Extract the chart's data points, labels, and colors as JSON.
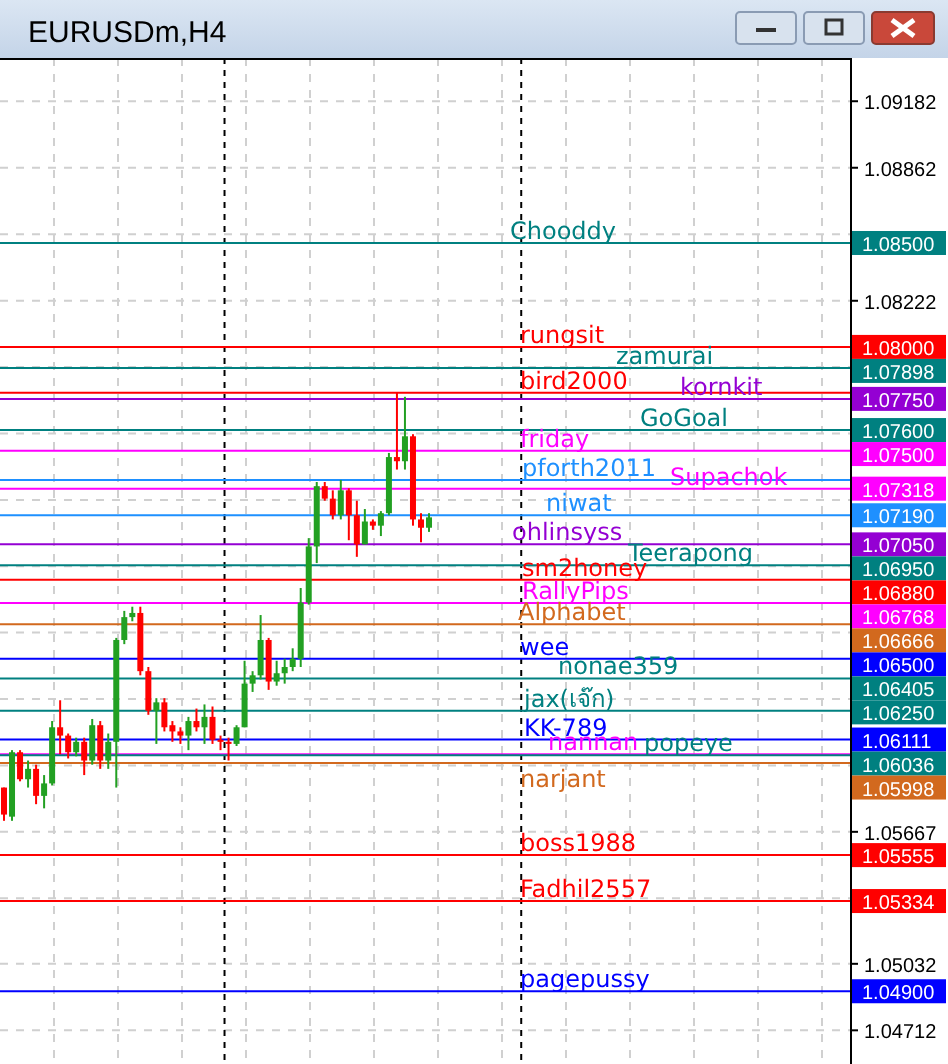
{
  "chart_data": {
    "type": "candlestick",
    "title": "EURUSDm,H4",
    "categories": [
      null,
      null,
      null,
      null,
      null,
      null,
      null,
      null,
      null,
      null,
      null,
      null,
      null,
      null,
      null,
      null,
      null,
      null,
      null,
      null,
      null,
      null,
      null,
      null,
      null,
      null,
      null,
      null,
      null,
      null,
      null,
      null,
      null,
      null,
      null,
      null,
      null,
      null,
      null,
      null,
      null,
      null,
      null,
      null,
      null,
      null,
      null,
      null,
      null,
      null,
      null,
      null,
      null,
      null,
      null,
      null,
      null,
      null,
      null,
      null,
      null,
      null,
      null,
      null,
      null,
      null,
      null,
      null,
      null,
      null,
      null,
      null,
      null,
      null,
      null,
      null,
      null,
      null,
      null,
      null,
      null,
      null,
      null,
      null,
      null,
      null,
      null,
      null,
      null,
      null,
      null,
      null,
      null,
      null,
      null,
      null,
      null,
      null,
      null,
      null,
      null,
      null,
      null,
      null,
      null,
      null
    ],
    "annotations": [
      "1.08500",
      "1.08000",
      "1.07898",
      "1.07750",
      "1.07600",
      "1.07500",
      "1.07318",
      "1.07190",
      "1.07050",
      "1.06880",
      "1.06950",
      "1.06768",
      "1.06666",
      "1.06500",
      "1.06405",
      "1.06250",
      "1.06111",
      "1.06036",
      "1.05998",
      "1.05555",
      "1.05334",
      "1.04900"
    ],
    "ylim": [
      1.0455,
      1.0939
    ],
    "yticks": [
      1.09182,
      1.08862,
      {
        "value": 1.08542,
        "label": null
      },
      1.08222,
      {
        "value": 1.07903,
        "label": null
      },
      {
        "value": 1.07584,
        "label": null
      },
      {
        "value": 1.07264,
        "label": null
      },
      {
        "value": 1.06945,
        "label": null
      },
      {
        "value": 1.06626,
        "label": null
      },
      {
        "value": 1.06306,
        "label": null
      },
      {
        "value": 1.05986,
        "label": null
      },
      1.05667,
      {
        "value": 1.05347,
        "label": null
      },
      1.05032,
      1.04712
    ],
    "tick_labels": "y",
    "grid": true,
    "ohlc": [
      [
        1.0588,
        1.0588,
        1.0572,
        1.0575
      ],
      [
        1.0574,
        1.0606,
        1.0572,
        1.0605
      ],
      [
        1.0605,
        1.0606,
        1.0591,
        1.0592
      ],
      [
        1.0592,
        1.0601,
        1.0588,
        1.0597
      ],
      [
        1.0597,
        1.0599,
        1.058,
        1.0584
      ],
      [
        1.0584,
        1.0594,
        1.0578,
        1.059
      ],
      [
        1.059,
        1.062,
        1.0589,
        1.0617
      ],
      [
        1.0617,
        1.063,
        1.0604,
        1.0613
      ],
      [
        1.0613,
        1.0614,
        1.0602,
        1.0605
      ],
      [
        1.0605,
        1.0612,
        1.0603,
        1.061
      ],
      [
        1.061,
        1.0612,
        1.0594,
        1.0601
      ],
      [
        1.0601,
        1.0621,
        1.0599,
        1.0618
      ],
      [
        1.0618,
        1.062,
        1.0597,
        1.0601
      ],
      [
        1.0601,
        1.0614,
        1.0597,
        1.061
      ],
      [
        1.061,
        1.066,
        1.0588,
        1.0659
      ],
      [
        1.0659,
        1.0673,
        1.0657,
        1.067
      ],
      [
        1.067,
        1.0675,
        1.0668,
        1.0672
      ],
      [
        1.0672,
        1.0675,
        1.0642,
        1.0644
      ],
      [
        1.0644,
        1.0646,
        1.0623,
        1.0625
      ],
      [
        1.0625,
        1.0631,
        1.0609,
        1.0629
      ],
      [
        1.0629,
        1.0631,
        1.0615,
        1.0617
      ],
      [
        1.0618,
        1.062,
        1.061,
        1.0615
      ],
      [
        1.0615,
        1.0617,
        1.0609,
        1.0613
      ],
      [
        1.0613,
        1.0622,
        1.0606,
        1.062
      ],
      [
        1.062,
        1.0626,
        1.0615,
        1.0617
      ],
      [
        1.0617,
        1.0628,
        1.0609,
        1.0622
      ],
      [
        1.0622,
        1.0627,
        1.0609,
        1.0611
      ],
      [
        1.0611,
        1.0613,
        1.0606,
        1.061
      ],
      [
        1.061,
        1.0612,
        1.0601,
        1.0609
      ],
      [
        1.0609,
        1.0618,
        1.0608,
        1.0617
      ],
      [
        1.0617,
        1.0649,
        1.0617,
        1.0638
      ],
      [
        1.0638,
        1.0644,
        1.0634,
        1.0642
      ],
      [
        1.0642,
        1.0671,
        1.064,
        1.0659
      ],
      [
        1.0659,
        1.066,
        1.0635,
        1.0639
      ],
      [
        1.0639,
        1.0649,
        1.0637,
        1.0643
      ],
      [
        1.0643,
        1.065,
        1.0638,
        1.0646
      ],
      [
        1.0646,
        1.0655,
        1.0644,
        1.065
      ],
      [
        1.065,
        1.0684,
        1.0646,
        1.0677
      ],
      [
        1.0677,
        1.0708,
        1.0676,
        1.0704
      ],
      [
        1.0704,
        1.0735,
        1.0696,
        1.0733
      ],
      [
        1.0733,
        1.0735,
        1.0726,
        1.0727
      ],
      [
        1.0727,
        1.0731,
        1.0717,
        1.0719
      ],
      [
        1.0719,
        1.0736,
        1.0717,
        1.0731
      ],
      [
        1.0731,
        1.0732,
        1.0707,
        1.0719
      ],
      [
        1.0719,
        1.0726,
        1.0699,
        1.0705
      ],
      [
        1.0705,
        1.0722,
        1.0705,
        1.0716
      ],
      [
        1.0716,
        1.0717,
        1.0712,
        1.0714
      ],
      [
        1.0714,
        1.0721,
        1.0709,
        1.072
      ],
      [
        1.072,
        1.0749,
        1.0719,
        1.0747
      ],
      [
        1.0747,
        1.0778,
        1.0741,
        1.0745
      ],
      [
        1.0745,
        1.0776,
        1.0741,
        1.0757
      ],
      [
        1.0757,
        1.0758,
        1.0714,
        1.0717
      ],
      [
        1.0717,
        1.072,
        1.0706,
        1.0713
      ],
      [
        1.0713,
        1.072,
        1.0711,
        1.0718
      ],
      null,
      null,
      null,
      null,
      null,
      null,
      null,
      null,
      null,
      null,
      null,
      null,
      null,
      null,
      null,
      null,
      null,
      null,
      null,
      null,
      null,
      null,
      null,
      null,
      null,
      null,
      null,
      null,
      null,
      null,
      null,
      null,
      null,
      null,
      null,
      null,
      null,
      null,
      null,
      null,
      null,
      null,
      null,
      null,
      null,
      null,
      null,
      null,
      null,
      null,
      null,
      null
    ],
    "ref_lines": [
      {
        "axis": "y",
        "value": 1.085,
        "label": "Chooddy",
        "color": "#008080"
      },
      {
        "axis": "y",
        "value": 1.08,
        "label": "rungsit",
        "color": "#ff0000"
      },
      {
        "axis": "y",
        "value": 1.07898,
        "label": "zamurai",
        "color": "#008080"
      },
      {
        "axis": "y",
        "value": 1.0778,
        "label": "bird2000",
        "color": "#ff0000"
      },
      {
        "axis": "y",
        "value": 1.0775,
        "label": "kornkit",
        "color": "#9400d3"
      },
      {
        "axis": "y",
        "value": 1.076,
        "label": "GoGoal",
        "color": "#008080"
      },
      {
        "axis": "y",
        "value": 1.075,
        "label": "friday",
        "color": "#ff00ff"
      },
      {
        "axis": "y",
        "value": 1.0736,
        "label": "pforth2011",
        "color": "#1e90ff"
      },
      {
        "axis": "y",
        "value": 1.07318,
        "label": "Supachok",
        "color": "#ff00ff"
      },
      {
        "axis": "y",
        "value": 1.0719,
        "label": "niwat",
        "color": "#1e90ff"
      },
      {
        "axis": "y",
        "value": 1.0705,
        "label": "ohlinsyss",
        "color": "#9400d3"
      },
      {
        "axis": "y",
        "value": 1.0688,
        "label": "sm2honey",
        "color": "#ff0000"
      },
      {
        "axis": "y",
        "value": 1.0695,
        "label": "Teerapong",
        "color": "#008080"
      },
      {
        "axis": "y",
        "value": 1.06768,
        "label": "RallyPips",
        "color": "#ff00ff"
      },
      {
        "axis": "y",
        "value": 1.06666,
        "label": "Alphabet",
        "color": "#d2691e"
      },
      {
        "axis": "y",
        "value": 1.065,
        "label": "wee",
        "color": "#0000ff"
      },
      {
        "axis": "y",
        "value": 1.06405,
        "label": "nonae359",
        "color": "#008080"
      },
      {
        "axis": "y",
        "value": 1.0625,
        "label": "jax(เจ๊ก)",
        "color": "#008080"
      },
      {
        "axis": "y",
        "value": 1.06111,
        "label": "KK-789",
        "color": "#0000ff"
      },
      {
        "axis": "y",
        "value": 1.0604,
        "label": "nannan",
        "color": "#ff00ff"
      },
      {
        "axis": "y",
        "value": 1.06036,
        "label": "popeye",
        "color": "#008080"
      },
      {
        "axis": "y",
        "value": 1.05998,
        "label": "narjant",
        "color": "#d2691e"
      },
      {
        "axis": "y",
        "value": 1.05555,
        "label": "boss1988",
        "color": "#ff0000"
      },
      {
        "axis": "y",
        "value": 1.05334,
        "label": "Fadhil2557",
        "color": "#ff0000"
      },
      {
        "axis": "y",
        "value": 1.049,
        "label": "pagepussy",
        "color": "#0000ff"
      }
    ]
  }
}
